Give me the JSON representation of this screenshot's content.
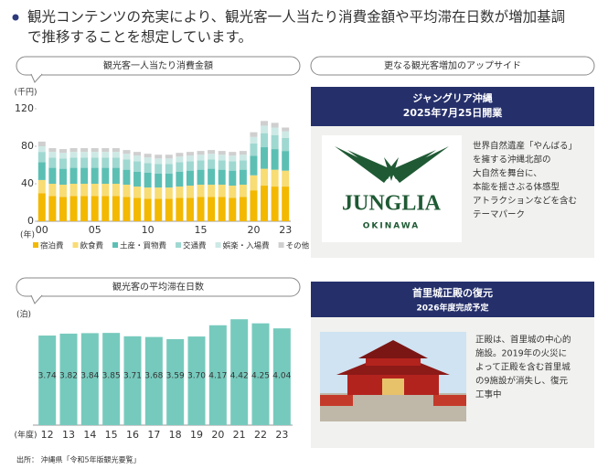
{
  "header": {
    "lines": [
      "観光コンテンツの充実により、観光客一人当たり消費金額や平均滞在日数が増加基調",
      "で推移することを想定しています。"
    ]
  },
  "chart_data": [
    {
      "type": "stacked_bar",
      "title": "観光客一人当たり消費金額",
      "y_unit": "(千円)",
      "x_unit": "(年)",
      "categories": [
        "00",
        null,
        null,
        null,
        null,
        "05",
        null,
        null,
        null,
        null,
        "10",
        null,
        null,
        null,
        null,
        "15",
        null,
        null,
        null,
        null,
        "20",
        null,
        null,
        "23"
      ],
      "ylim": [
        0,
        120
      ],
      "yticks": [
        0,
        40,
        80,
        120
      ],
      "series": [
        {
          "name": "宿泊費",
          "color": "#f3b800",
          "values": [
            30,
            27,
            26,
            27,
            27,
            27,
            27,
            27,
            26,
            25,
            24,
            24,
            24,
            25,
            25,
            26,
            26,
            26,
            25,
            26,
            33,
            38,
            37,
            37
          ]
        },
        {
          "name": "飲食費",
          "color": "#f8dc74",
          "values": [
            14,
            13,
            13,
            13,
            13,
            13,
            13,
            13,
            13,
            12,
            12,
            12,
            12,
            12,
            13,
            13,
            13,
            13,
            13,
            13,
            16,
            18,
            18,
            17
          ]
        },
        {
          "name": "土産・買物費",
          "color": "#5cbfb4",
          "values": [
            19,
            17,
            17,
            17,
            17,
            17,
            17,
            17,
            16,
            16,
            16,
            15,
            15,
            16,
            16,
            16,
            17,
            16,
            16,
            16,
            21,
            23,
            22,
            21
          ]
        },
        {
          "name": "交通費",
          "color": "#9fd8d1",
          "values": [
            11,
            11,
            11,
            11,
            11,
            11,
            11,
            11,
            11,
            11,
            10,
            10,
            10,
            10,
            10,
            10,
            10,
            10,
            10,
            10,
            13,
            15,
            15,
            14
          ]
        },
        {
          "name": "娯楽・入場費",
          "color": "#cde9e5",
          "values": [
            6,
            6,
            6,
            6,
            6,
            6,
            6,
            6,
            6,
            6,
            6,
            6,
            6,
            6,
            6,
            6,
            6,
            6,
            6,
            6,
            7,
            8,
            8,
            7
          ]
        },
        {
          "name": "その他",
          "color": "#cfcfcf",
          "values": [
            5,
            4,
            4,
            4,
            4,
            4,
            4,
            4,
            4,
            4,
            4,
            4,
            4,
            4,
            4,
            4,
            4,
            4,
            4,
            4,
            5,
            5,
            5,
            4
          ]
        }
      ]
    },
    {
      "type": "bar",
      "title": "観光客の平均滞在日数",
      "y_unit": "(泊)",
      "x_unit": "(年度)",
      "categories": [
        "12",
        "13",
        "14",
        "15",
        "16",
        "17",
        "18",
        "19",
        "20",
        "21",
        "22",
        "23"
      ],
      "values": [
        3.74,
        3.82,
        3.84,
        3.85,
        3.71,
        3.68,
        3.59,
        3.7,
        4.17,
        4.42,
        4.25,
        4.04
      ],
      "value_labels": [
        "3.74",
        "3.82",
        "3.84",
        "3.85",
        "3.71",
        "3.68",
        "3.59",
        "3.70",
        "4.17",
        "4.42",
        "4.25",
        "4.04"
      ],
      "color": "#76cabd",
      "ylim": [
        0,
        4.6
      ]
    }
  ],
  "panels": [
    {
      "heading": "更なる観光客増加のアップサイド",
      "title": "ジャングリア沖縄",
      "subtitle": "2025年7月25日開業",
      "logo": "JUNGLIA",
      "logo_sub": "OKINAWA",
      "lines": [
        "世界自然遺産「やんばる」",
        "を擁する沖縄北部の",
        "大自然を舞台に、",
        "本能を揺さぶる体感型",
        "アトラクションなどを含む",
        "テーマパーク"
      ]
    },
    {
      "title": "首里城正殿の復元",
      "subtitle": "2026年度完成予定",
      "lines": [
        "正殿は、首里城の中心的",
        "施設。2019年の火災に",
        "よって正殿を含む首里城",
        "の9施設が消失し、復元",
        "工事中"
      ]
    }
  ],
  "source": "出所： 沖縄県「令和5年版観光要覧」"
}
